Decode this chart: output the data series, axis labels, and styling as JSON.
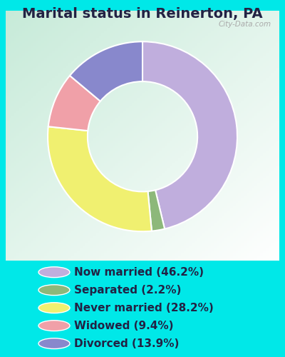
{
  "title": "Marital status in Reinerton, PA",
  "slices": [
    46.2,
    2.2,
    28.2,
    9.4,
    13.9
  ],
  "slice_order_colors": [
    "#c0aedd",
    "#8db87a",
    "#f0f070",
    "#f0a0a8",
    "#8888cc"
  ],
  "labels": [
    "Now married (46.2%)",
    "Separated (2.2%)",
    "Never married (28.2%)",
    "Widowed (9.4%)",
    "Divorced (13.9%)"
  ],
  "legend_colors": [
    "#c0aedd",
    "#8db87a",
    "#f0f070",
    "#f0a0a8",
    "#8888cc"
  ],
  "bg_outer": "#00e8e8",
  "bg_chart_topleft": "#c8ead8",
  "bg_chart_center": "#f0f8f0",
  "title_fontsize": 14,
  "legend_fontsize": 11,
  "watermark": "City-Data.com",
  "title_color": "#222244"
}
